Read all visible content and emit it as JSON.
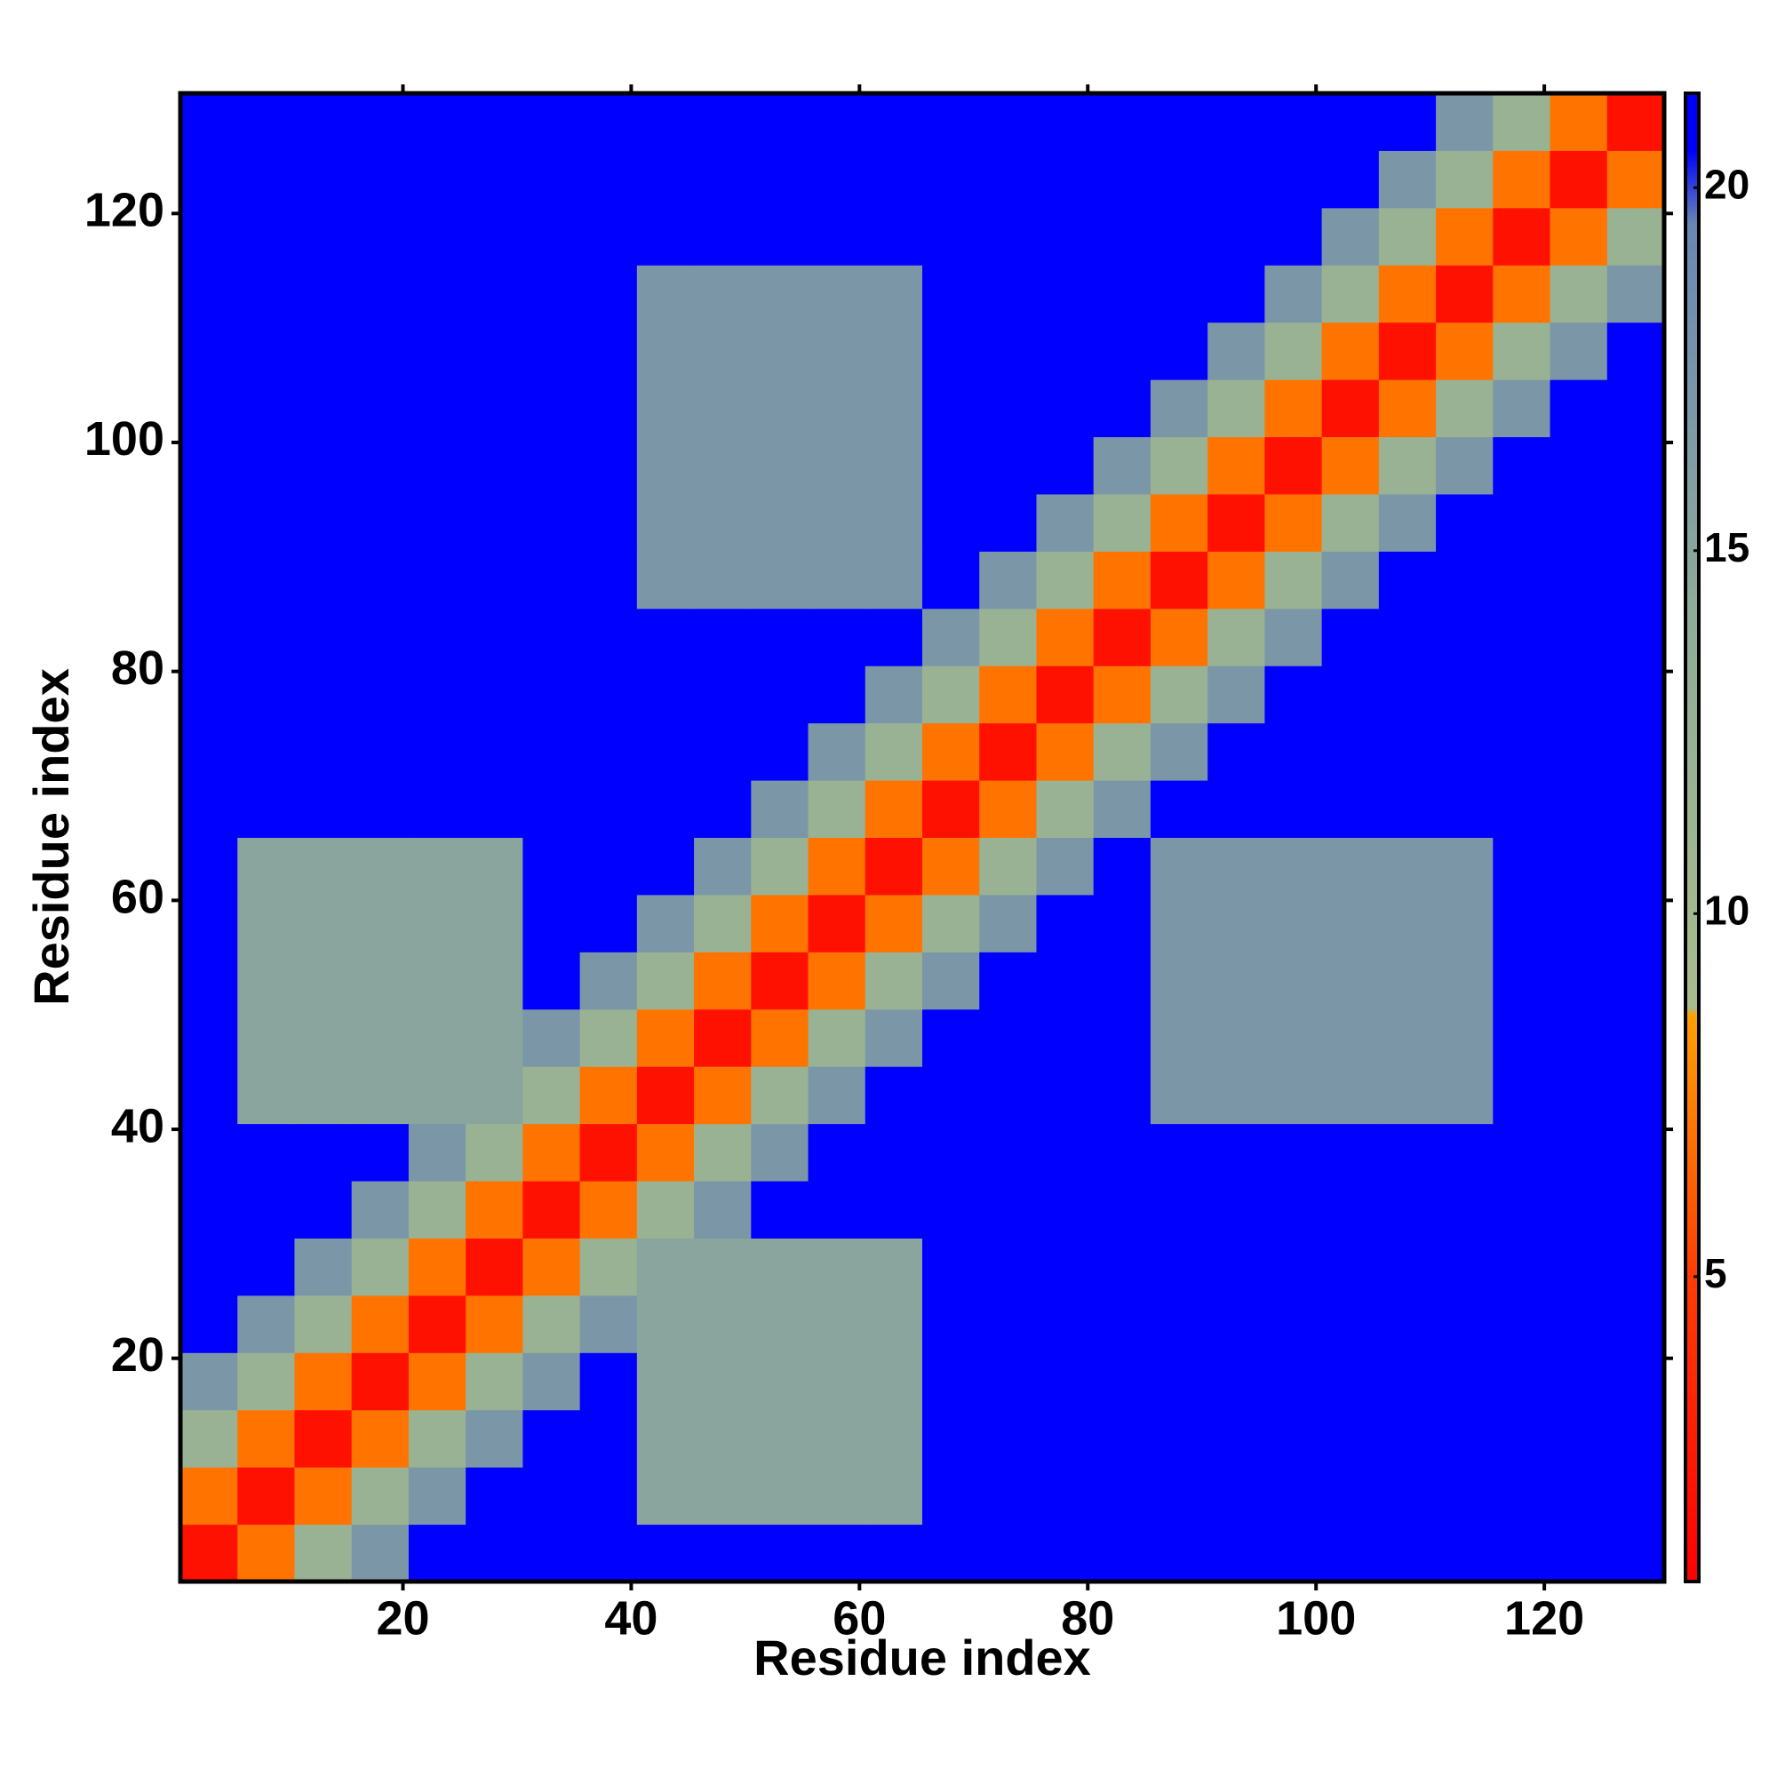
{
  "chart_data": {
    "type": "heatmap",
    "x_label": "Residue index",
    "y_label": "Residue index",
    "x": [
      3,
      8,
      13,
      18,
      23,
      28,
      33,
      38,
      43,
      48,
      53,
      58,
      63,
      68,
      73,
      78,
      83,
      88,
      93,
      98,
      103,
      108,
      113,
      118,
      123,
      128
    ],
    "y": [
      3,
      8,
      13,
      18,
      23,
      28,
      33,
      38,
      43,
      48,
      53,
      58,
      63,
      68,
      73,
      78,
      83,
      88,
      93,
      98,
      103,
      108,
      113,
      118,
      123,
      128
    ],
    "z": [
      [
        2,
        7,
        12,
        17,
        21,
        21,
        21,
        21,
        21,
        21,
        21,
        21,
        21,
        21,
        21,
        21,
        21,
        21,
        21,
        21,
        21,
        21,
        21,
        21,
        21,
        21
      ],
      [
        7,
        2,
        7,
        12,
        17,
        21,
        21,
        21,
        15,
        15,
        15,
        15,
        15,
        21,
        21,
        21,
        21,
        21,
        21,
        21,
        21,
        21,
        21,
        21,
        21,
        21
      ],
      [
        12,
        7,
        2,
        7,
        12,
        17,
        21,
        21,
        15,
        15,
        15,
        15,
        15,
        21,
        21,
        21,
        21,
        21,
        21,
        21,
        21,
        21,
        21,
        21,
        21,
        21
      ],
      [
        17,
        12,
        7,
        2,
        7,
        12,
        17,
        21,
        15,
        15,
        15,
        15,
        15,
        21,
        21,
        21,
        21,
        21,
        21,
        21,
        21,
        21,
        21,
        21,
        21,
        21
      ],
      [
        21,
        17,
        12,
        7,
        2,
        7,
        12,
        17,
        15,
        15,
        15,
        15,
        15,
        21,
        21,
        21,
        21,
        21,
        21,
        21,
        21,
        21,
        21,
        21,
        21,
        21
      ],
      [
        21,
        21,
        17,
        12,
        7,
        2,
        7,
        12,
        15,
        15,
        15,
        15,
        15,
        21,
        21,
        21,
        21,
        21,
        21,
        21,
        21,
        21,
        21,
        21,
        21,
        21
      ],
      [
        21,
        21,
        21,
        17,
        12,
        7,
        2,
        7,
        12,
        17,
        21,
        21,
        21,
        21,
        21,
        21,
        21,
        21,
        21,
        21,
        21,
        21,
        21,
        21,
        21,
        21
      ],
      [
        21,
        21,
        21,
        21,
        17,
        12,
        7,
        2,
        7,
        12,
        17,
        21,
        21,
        21,
        21,
        21,
        21,
        21,
        21,
        21,
        21,
        21,
        21,
        21,
        21,
        21
      ],
      [
        21,
        15,
        15,
        15,
        15,
        15,
        12,
        7,
        2,
        7,
        12,
        17,
        21,
        21,
        21,
        21,
        21,
        17,
        17,
        17,
        17,
        17,
        17,
        21,
        21,
        21
      ],
      [
        21,
        15,
        15,
        15,
        15,
        15,
        17,
        12,
        7,
        2,
        7,
        12,
        17,
        21,
        21,
        21,
        21,
        17,
        17,
        17,
        17,
        17,
        17,
        21,
        21,
        21
      ],
      [
        21,
        15,
        15,
        15,
        15,
        15,
        21,
        17,
        12,
        7,
        2,
        7,
        12,
        17,
        21,
        21,
        21,
        17,
        17,
        17,
        17,
        17,
        17,
        21,
        21,
        21
      ],
      [
        21,
        15,
        15,
        15,
        15,
        15,
        21,
        21,
        17,
        12,
        7,
        2,
        7,
        12,
        17,
        21,
        21,
        17,
        17,
        17,
        17,
        17,
        17,
        21,
        21,
        21
      ],
      [
        21,
        15,
        15,
        15,
        15,
        15,
        21,
        21,
        21,
        17,
        12,
        7,
        2,
        7,
        12,
        17,
        21,
        17,
        17,
        17,
        17,
        17,
        17,
        21,
        21,
        21
      ],
      [
        21,
        21,
        21,
        21,
        21,
        21,
        21,
        21,
        21,
        21,
        17,
        12,
        7,
        2,
        7,
        12,
        17,
        21,
        21,
        21,
        21,
        21,
        21,
        21,
        21,
        21
      ],
      [
        21,
        21,
        21,
        21,
        21,
        21,
        21,
        21,
        21,
        21,
        21,
        17,
        12,
        7,
        2,
        7,
        12,
        17,
        21,
        21,
        21,
        21,
        21,
        21,
        21,
        21
      ],
      [
        21,
        21,
        21,
        21,
        21,
        21,
        21,
        21,
        21,
        21,
        21,
        21,
        17,
        12,
        7,
        2,
        7,
        12,
        17,
        21,
        21,
        21,
        21,
        21,
        21,
        21
      ],
      [
        21,
        21,
        21,
        21,
        21,
        21,
        21,
        21,
        21,
        21,
        21,
        21,
        21,
        17,
        12,
        7,
        2,
        7,
        12,
        17,
        21,
        21,
        21,
        21,
        21,
        21
      ],
      [
        21,
        21,
        21,
        21,
        21,
        21,
        21,
        21,
        17,
        17,
        17,
        17,
        17,
        21,
        17,
        12,
        7,
        2,
        7,
        12,
        17,
        21,
        21,
        21,
        21,
        21
      ],
      [
        21,
        21,
        21,
        21,
        21,
        21,
        21,
        21,
        17,
        17,
        17,
        17,
        17,
        21,
        21,
        17,
        12,
        7,
        2,
        7,
        12,
        17,
        21,
        21,
        21,
        21
      ],
      [
        21,
        21,
        21,
        21,
        21,
        21,
        21,
        21,
        17,
        17,
        17,
        17,
        17,
        21,
        21,
        21,
        17,
        12,
        7,
        2,
        7,
        12,
        17,
        21,
        21,
        21
      ],
      [
        21,
        21,
        21,
        21,
        21,
        21,
        21,
        21,
        17,
        17,
        17,
        17,
        17,
        21,
        21,
        21,
        21,
        17,
        12,
        7,
        2,
        7,
        12,
        17,
        21,
        21
      ],
      [
        21,
        21,
        21,
        21,
        21,
        21,
        21,
        21,
        17,
        17,
        17,
        17,
        17,
        21,
        21,
        21,
        21,
        21,
        17,
        12,
        7,
        2,
        7,
        12,
        17,
        21
      ],
      [
        21,
        21,
        21,
        21,
        21,
        21,
        21,
        21,
        17,
        17,
        17,
        17,
        17,
        21,
        21,
        21,
        21,
        21,
        21,
        17,
        12,
        7,
        2,
        7,
        12,
        17
      ],
      [
        21,
        21,
        21,
        21,
        21,
        21,
        21,
        21,
        21,
        21,
        21,
        21,
        21,
        21,
        21,
        21,
        21,
        21,
        21,
        21,
        17,
        12,
        7,
        2,
        7,
        12
      ],
      [
        21,
        21,
        21,
        21,
        21,
        21,
        21,
        21,
        21,
        21,
        21,
        21,
        21,
        21,
        21,
        21,
        21,
        21,
        21,
        21,
        21,
        17,
        12,
        7,
        2,
        7
      ],
      [
        21,
        21,
        21,
        21,
        21,
        21,
        21,
        21,
        21,
        21,
        21,
        21,
        21,
        21,
        21,
        21,
        21,
        21,
        21,
        21,
        21,
        21,
        17,
        12,
        7,
        2
      ]
    ],
    "xlim": [
      0.5,
      130.5
    ],
    "ylim": [
      0.5,
      130.5
    ],
    "xticks": [
      20,
      40,
      60,
      80,
      100,
      120
    ],
    "yticks": [
      20,
      40,
      60,
      80,
      100,
      120
    ],
    "clim": [
      0.8,
      21.3
    ],
    "cticks": [
      5,
      10,
      15,
      20
    ],
    "colorscale": [
      [
        0.8,
        "#ff0000"
      ],
      [
        5,
        "#ff3c00"
      ],
      [
        8.6,
        "#ffa000"
      ],
      [
        8.7,
        "#a8bc8c"
      ],
      [
        14,
        "#90ac98"
      ],
      [
        19.5,
        "#6a86b4"
      ],
      [
        20.5,
        "#0000ff"
      ]
    ]
  }
}
